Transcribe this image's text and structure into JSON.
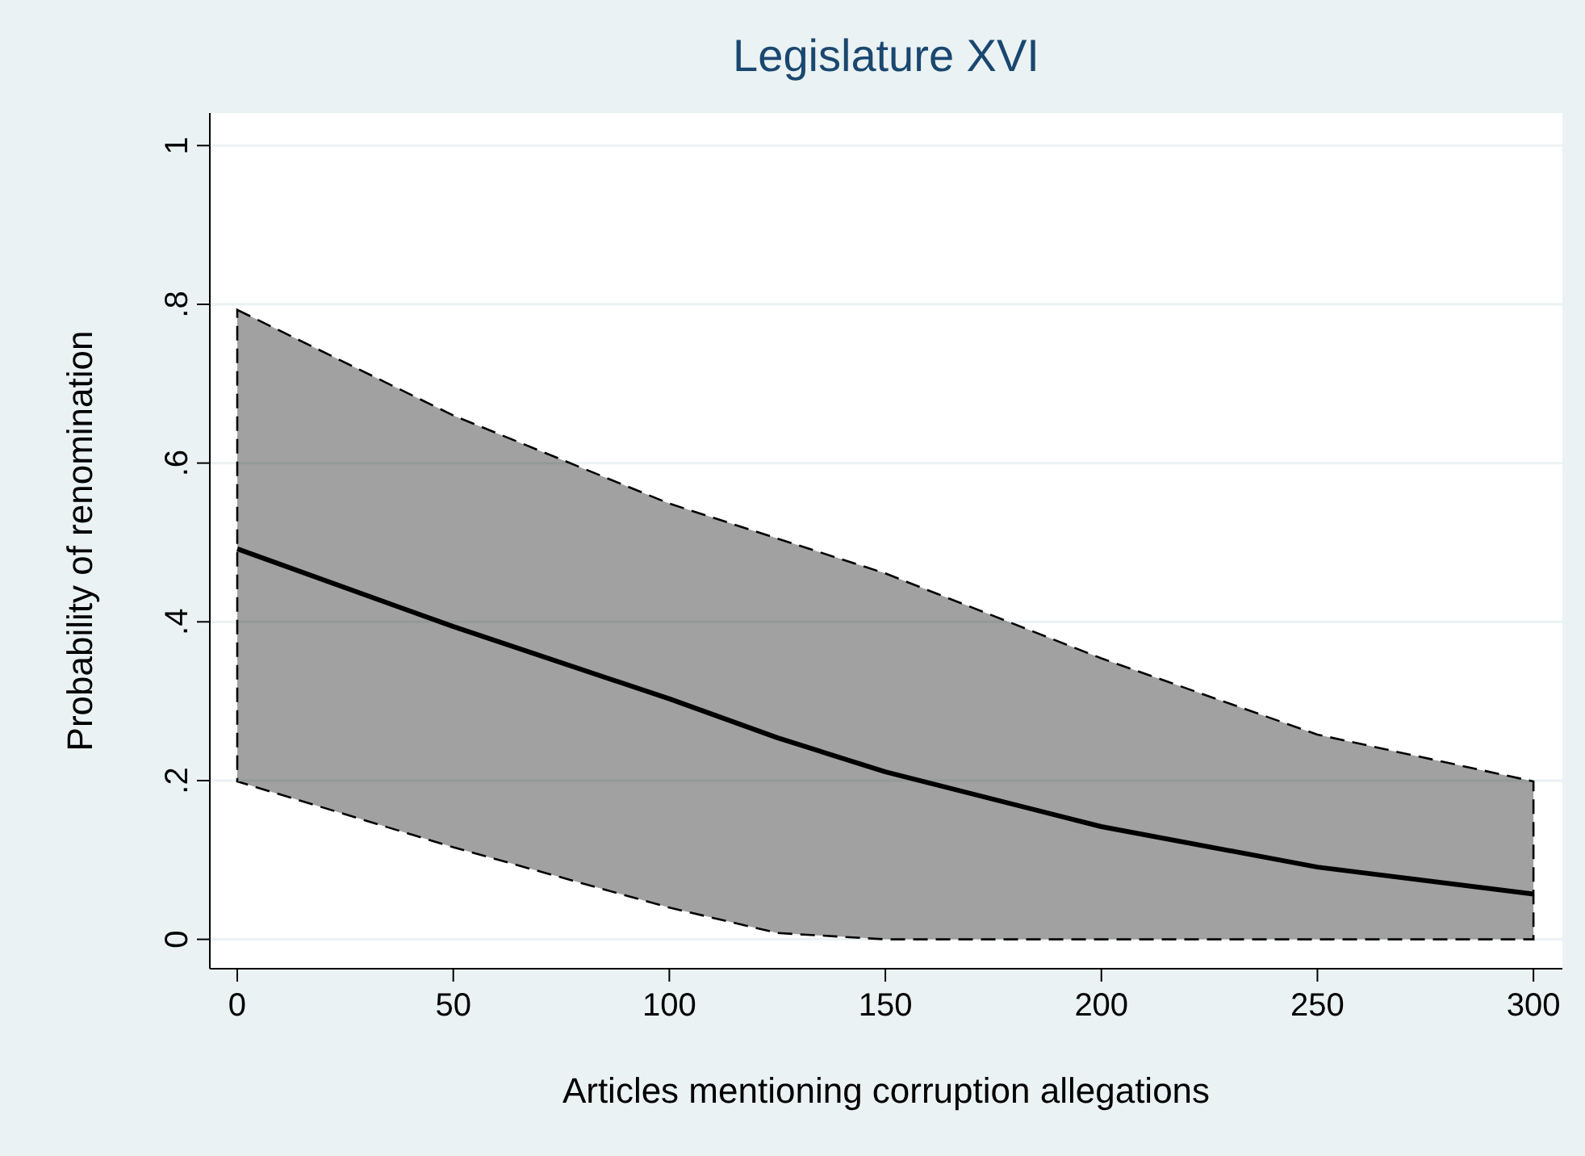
{
  "chart_data": {
    "type": "line",
    "title": "Legislature XVI",
    "xlabel": "Articles mentioning corruption allegations",
    "ylabel": "Probability of renomination",
    "x": [
      0,
      50,
      100,
      125,
      150,
      200,
      250,
      300
    ],
    "series": [
      {
        "color": "#000000",
        "values": [
          0.492,
          0.394,
          0.303,
          0.254,
          0.211,
          0.142,
          0.091,
          0.057
        ],
        "lower": [
          0.199,
          0.116,
          0.04,
          0.008,
          0,
          0,
          0,
          0
        ],
        "upper": [
          0.793,
          0.66,
          0.549,
          0.505,
          0.461,
          0.354,
          0.258,
          0.199
        ]
      }
    ],
    "xlim": [
      -6.35,
      306.7
    ],
    "xticks": [
      0,
      50,
      100,
      150,
      200,
      250,
      300
    ],
    "ylim": [
      -0.037,
      1.041
    ],
    "yticks": [
      {
        "value": 0,
        "label": "0"
      },
      {
        "value": 0.2,
        "label": ".2"
      },
      {
        "value": 0.4,
        "label": ".4"
      },
      {
        "value": 0.6,
        "label": ".6"
      },
      {
        "value": 0.8,
        "label": ".8"
      },
      {
        "value": 1,
        "label": "1"
      }
    ],
    "grid": "y",
    "marker": "none",
    "line_style": "solid"
  }
}
